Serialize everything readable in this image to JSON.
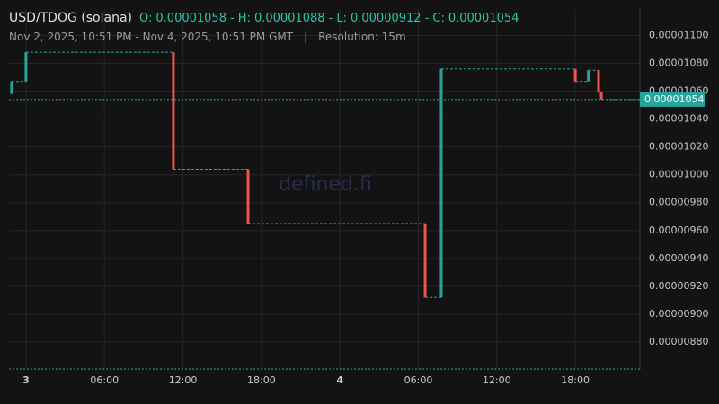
{
  "chart_data": {
    "type": "candlestick",
    "title": "USD/TDOG (solana)",
    "ohlc": [
      {
        "label": "O:",
        "value": 1.058e-05
      },
      {
        "label": "- H:",
        "value": 1.088e-05
      },
      {
        "label": "- L:",
        "value": 9.12e-06
      },
      {
        "label": "- C:",
        "value": 1.054e-05
      }
    ],
    "subtitle": "Nov 2, 2025, 10:51 PM - Nov 4, 2025, 10:51 PM GMT",
    "separator": "|",
    "resolution": "Resolution: 15m",
    "watermark": "defined.fi",
    "up_color": "#26a69a",
    "down_color": "#ef5350",
    "x": [
      -1.1,
      0,
      11.27,
      16.98,
      30.52,
      31.75,
      42.0,
      43.0,
      43.78,
      43.99
    ],
    "open": [
      1.058e-05,
      1.067e-05,
      1.088e-05,
      1.004e-05,
      9.65e-06,
      9.12e-06,
      1.076e-05,
      1.067e-05,
      1.075e-05,
      1.059e-05
    ],
    "close": [
      1.067e-05,
      1.088e-05,
      1.004e-05,
      9.65e-06,
      9.12e-06,
      1.076e-05,
      1.067e-05,
      1.075e-05,
      1.059e-05,
      1.054e-05
    ],
    "last_price": 1.054e-05,
    "xlim": [
      -1.3,
      46.94
    ],
    "xticks": [
      {
        "value": 0,
        "label": "3"
      },
      {
        "value": 6,
        "label": "06:00"
      },
      {
        "value": 12,
        "label": "12:00"
      },
      {
        "value": 18,
        "label": "18:00"
      },
      {
        "value": 24,
        "label": "4"
      },
      {
        "value": 30,
        "label": "06:00"
      },
      {
        "value": 36,
        "label": "12:00"
      },
      {
        "value": 42,
        "label": "18:00"
      }
    ],
    "ylim": [
      8.6e-06,
      1.119e-05
    ],
    "yticks": [
      {
        "value": 8.8e-06,
        "label": "0.00000880"
      },
      {
        "value": 9e-06,
        "label": "0.00000900"
      },
      {
        "value": 9.2e-06,
        "label": "0.00000920"
      },
      {
        "value": 9.4e-06,
        "label": "0.00000940"
      },
      {
        "value": 9.6e-06,
        "label": "0.00000960"
      },
      {
        "value": 9.8e-06,
        "label": "0.00000980"
      },
      {
        "value": 1e-05,
        "label": "0.00001000"
      },
      {
        "value": 1.02e-05,
        "label": "0.00001020"
      },
      {
        "value": 1.04e-05,
        "label": "0.00001040"
      },
      {
        "value": 1.06e-05,
        "label": "0.00001060"
      },
      {
        "value": 1.08e-05,
        "label": "0.00001080"
      },
      {
        "value": 1.1e-05,
        "label": "0.00001100"
      }
    ],
    "grid": true
  }
}
